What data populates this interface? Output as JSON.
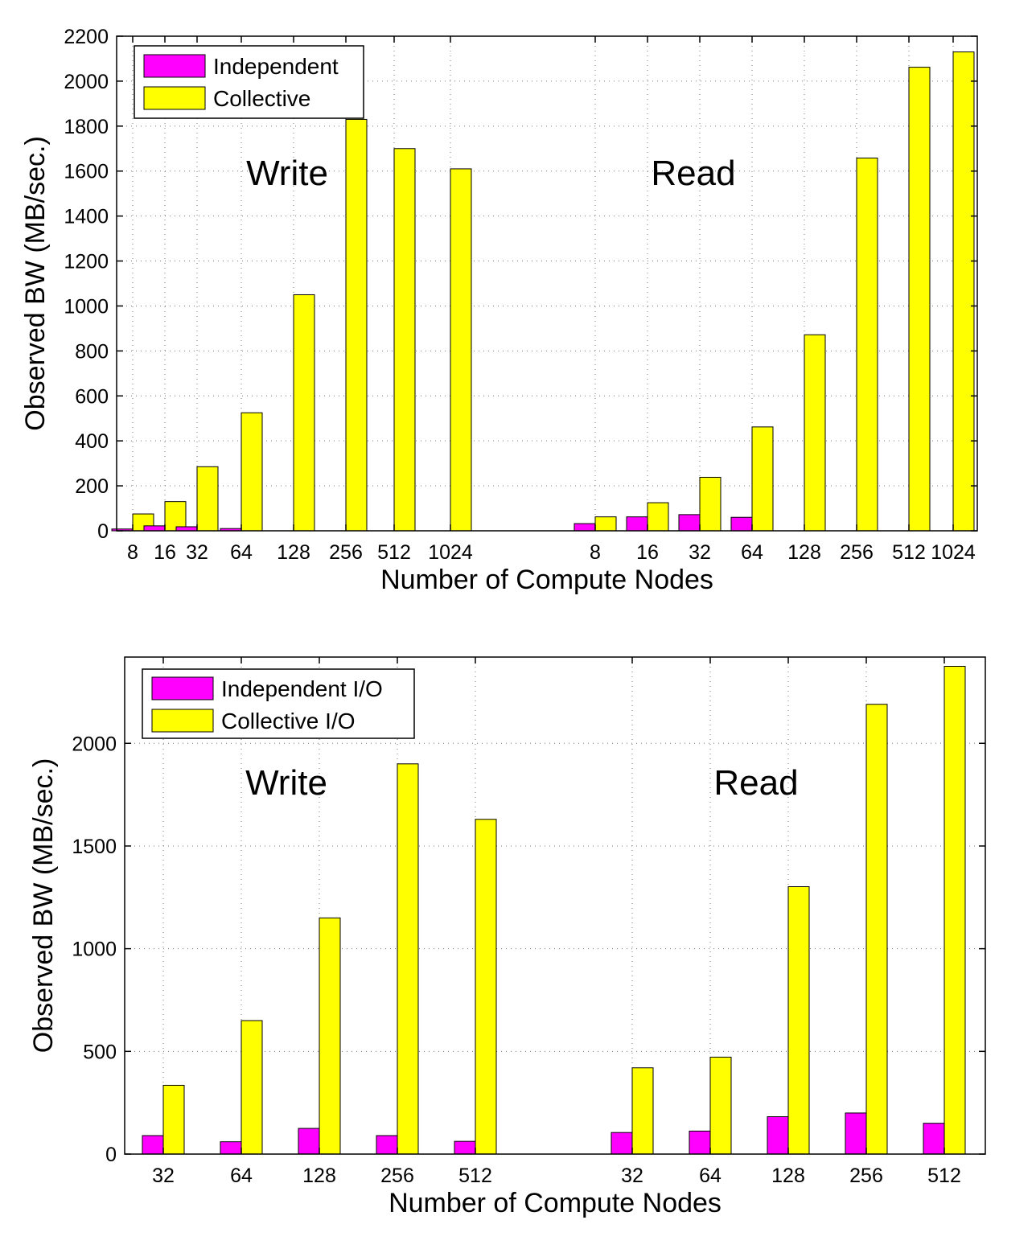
{
  "colors": {
    "independent": "#ff00ff",
    "collective": "#ffff00"
  },
  "chart_data": [
    {
      "type": "bar",
      "groups": [
        {
          "label": "Write",
          "categories": [
            "8",
            "16",
            "32",
            "64",
            "128",
            "256",
            "512",
            "1024"
          ],
          "independent": [
            8,
            22,
            18,
            10,
            0,
            0,
            0,
            0
          ],
          "collective": [
            75,
            130,
            285,
            525,
            1050,
            1830,
            1700,
            1610
          ]
        },
        {
          "label": "Read",
          "categories": [
            "8",
            "16",
            "32",
            "64",
            "128",
            "256",
            "512",
            "1024"
          ],
          "independent": [
            32,
            62,
            72,
            60,
            0,
            0,
            0,
            0
          ],
          "collective": [
            62,
            125,
            238,
            462,
            872,
            1658,
            2062,
            2130
          ]
        }
      ],
      "series_names": [
        "Independent",
        "Collective"
      ],
      "xlabel": "Number of Compute Nodes",
      "ylabel": "Observed BW (MB/sec.)",
      "ylim": [
        0,
        2200
      ],
      "yticks": [
        0,
        200,
        400,
        600,
        800,
        1000,
        1200,
        1400,
        1600,
        1800,
        2000,
        2200
      ],
      "grid": true,
      "legend": "top-left"
    },
    {
      "type": "bar",
      "groups": [
        {
          "label": "Write",
          "categories": [
            "32",
            "64",
            "128",
            "256",
            "512"
          ],
          "independent": [
            90,
            60,
            125,
            90,
            62
          ],
          "collective": [
            335,
            650,
            1150,
            1900,
            1630
          ]
        },
        {
          "label": "Read",
          "categories": [
            "32",
            "64",
            "128",
            "256",
            "512"
          ],
          "independent": [
            105,
            112,
            182,
            200,
            150
          ],
          "collective": [
            420,
            472,
            1302,
            2190,
            2375
          ]
        }
      ],
      "series_names": [
        "Independent I/O",
        "Collective  I/O"
      ],
      "xlabel": "Number of Compute Nodes",
      "ylabel": "Observed BW (MB/sec.)",
      "ylim": [
        0,
        2420
      ],
      "yticks": [
        0,
        500,
        1000,
        1500,
        2000
      ],
      "grid": true,
      "legend": "top-left"
    }
  ]
}
